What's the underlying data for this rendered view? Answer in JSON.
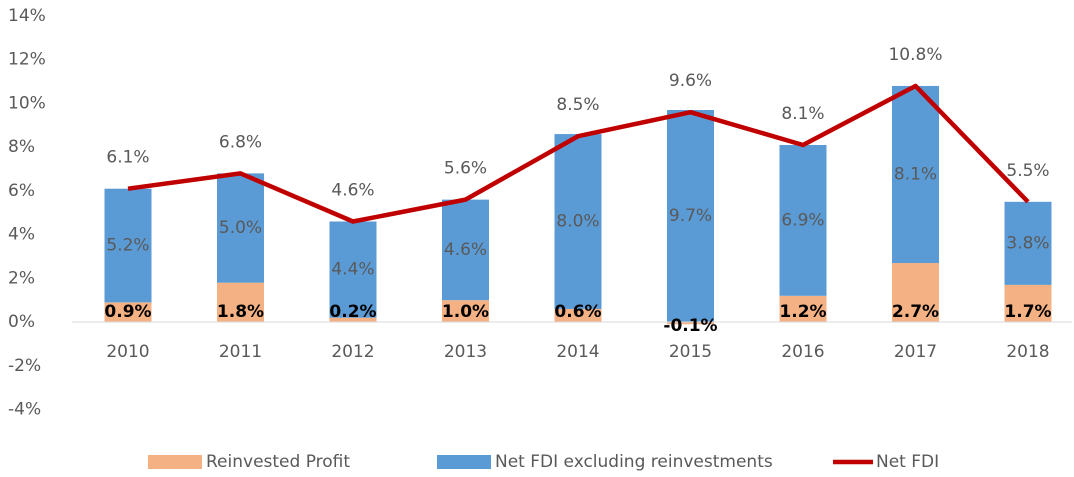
{
  "chart_data": {
    "type": "stacked-bar-line",
    "categories": [
      "2010",
      "2011",
      "2012",
      "2013",
      "2014",
      "2015",
      "2016",
      "2017",
      "2018"
    ],
    "series": [
      {
        "name": "Reinvested Profit",
        "type": "bar",
        "color": "#f4b183",
        "values": [
          0.9,
          1.8,
          0.2,
          1.0,
          0.6,
          -0.1,
          1.2,
          2.7,
          1.7
        ],
        "value_labels": [
          "0.9%",
          "1.8%",
          "0.2%",
          "1.0%",
          "0.6%",
          "-0.1%",
          "1.2%",
          "2.7%",
          "1.7%"
        ]
      },
      {
        "name": "Net FDI excluding reinvestments",
        "type": "bar",
        "color": "#5b9bd5",
        "values": [
          5.2,
          5.0,
          4.4,
          4.6,
          8.0,
          9.7,
          6.9,
          8.1,
          3.8
        ],
        "value_labels": [
          "5.2%",
          "5.0%",
          "4.4%",
          "4.6%",
          "8.0%",
          "9.7%",
          "6.9%",
          "8.1%",
          "3.8%"
        ]
      },
      {
        "name": "Net FDI",
        "type": "line",
        "color": "#c00000",
        "values": [
          6.1,
          6.8,
          4.6,
          5.6,
          8.5,
          9.6,
          8.1,
          10.8,
          5.5
        ],
        "value_labels": [
          "6.1%",
          "6.8%",
          "4.6%",
          "5.6%",
          "8.5%",
          "9.6%",
          "8.1%",
          "10.8%",
          "5.5%"
        ]
      }
    ],
    "ylim": [
      -4,
      14
    ],
    "yticks": [
      {
        "value": -4,
        "label": "-4%"
      },
      {
        "value": -2,
        "label": "-2%"
      },
      {
        "value": 0,
        "label": "0%"
      },
      {
        "value": 2,
        "label": "2%"
      },
      {
        "value": 4,
        "label": "4%"
      },
      {
        "value": 6,
        "label": "6%"
      },
      {
        "value": 8,
        "label": "8%"
      },
      {
        "value": 10,
        "label": "10%"
      },
      {
        "value": 12,
        "label": "12%"
      },
      {
        "value": 14,
        "label": "14%"
      }
    ],
    "grid": false,
    "legend": "bottom"
  }
}
